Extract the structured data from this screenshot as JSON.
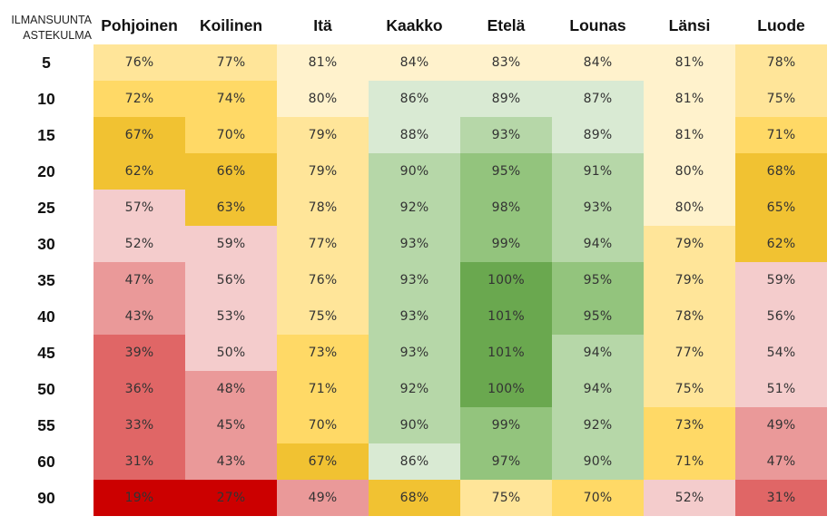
{
  "chart_data": {
    "type": "heatmap",
    "corner_label_line1": "ILMANSUUNTA",
    "corner_label_line2": "ASTEKULMA",
    "columns": [
      "Pohjoinen",
      "Koilinen",
      "Itä",
      "Kaakko",
      "Etelä",
      "Lounas",
      "Länsi",
      "Luode"
    ],
    "rows": [
      "5",
      "10",
      "15",
      "20",
      "25",
      "30",
      "35",
      "40",
      "45",
      "50",
      "55",
      "60",
      "90"
    ],
    "unit": "%",
    "values": [
      [
        76,
        77,
        81,
        84,
        83,
        84,
        81,
        78
      ],
      [
        72,
        74,
        80,
        86,
        89,
        87,
        81,
        75
      ],
      [
        67,
        70,
        79,
        88,
        93,
        89,
        81,
        71
      ],
      [
        62,
        66,
        79,
        90,
        95,
        91,
        80,
        68
      ],
      [
        57,
        63,
        78,
        92,
        98,
        93,
        80,
        65
      ],
      [
        52,
        59,
        77,
        93,
        99,
        94,
        79,
        62
      ],
      [
        47,
        56,
        76,
        93,
        100,
        95,
        79,
        59
      ],
      [
        43,
        53,
        75,
        93,
        101,
        95,
        78,
        56
      ],
      [
        39,
        50,
        73,
        93,
        101,
        94,
        77,
        54
      ],
      [
        36,
        48,
        71,
        92,
        100,
        94,
        75,
        51
      ],
      [
        33,
        45,
        70,
        90,
        99,
        92,
        73,
        49
      ],
      [
        31,
        43,
        67,
        86,
        97,
        90,
        71,
        47
      ],
      [
        19,
        27,
        49,
        68,
        75,
        70,
        52,
        31
      ]
    ],
    "color_scale": [
      {
        "min": 100,
        "color": "#6aa84f"
      },
      {
        "min": 95,
        "color": "#93c47d"
      },
      {
        "min": 90,
        "color": "#b6d7a8"
      },
      {
        "min": 85,
        "color": "#d9ead3"
      },
      {
        "min": 80,
        "color": "#fff2cc"
      },
      {
        "min": 75,
        "color": "#ffe599"
      },
      {
        "min": 69,
        "color": "#ffd966"
      },
      {
        "min": 60,
        "color": "#f1c232"
      },
      {
        "min": 50,
        "color": "#f4cccc"
      },
      {
        "min": 40,
        "color": "#ea9999"
      },
      {
        "min": 30,
        "color": "#e06666"
      },
      {
        "min": 0,
        "color": "#cc0000"
      }
    ]
  }
}
